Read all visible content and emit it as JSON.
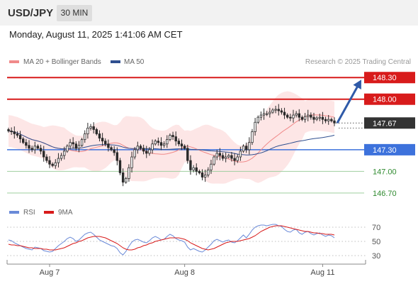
{
  "header": {
    "pair": "USD/JPY",
    "timeframe": "30 MIN",
    "datetime": "Monday, August 11, 2025 1:41:06 AM CET"
  },
  "legend": {
    "ma20": "MA 20 + Bollinger Bands",
    "ma50": "MA 50",
    "credit": "Research © 2025 Trading Central",
    "rsi": "RSI",
    "rsi_ma": "9MA"
  },
  "colors": {
    "resistance": "#d81b1b",
    "support": "#3d72dc",
    "target": "#9fcf9f",
    "target_text": "#2f8a2f",
    "bands": "#fde2e2",
    "ma20": "#f08a8a",
    "ma50": "#2f4f8f",
    "arrow": "#2f5aa8",
    "rsi": "#6a8ad8",
    "rsi_ma": "#d81b1b",
    "candle": "#2a2a2a",
    "last_bg": "#333333"
  },
  "chart_data": {
    "type": "candlestick",
    "instrument": "USD/JPY",
    "interval": "30 MIN",
    "ylim": [
      146.6,
      148.45
    ],
    "x_ticks": [
      "Aug 7",
      "Aug 8",
      "Aug 11"
    ],
    "levels": [
      {
        "value": 148.3,
        "label": "148.30",
        "kind": "resistance"
      },
      {
        "value": 148.0,
        "label": "148.00",
        "kind": "resistance"
      },
      {
        "value": 147.67,
        "label": "147.67",
        "kind": "last"
      },
      {
        "value": 147.3,
        "label": "147.30",
        "kind": "pivot"
      },
      {
        "value": 147.0,
        "label": "147.00",
        "kind": "target"
      },
      {
        "value": 146.7,
        "label": "146.70",
        "kind": "target"
      }
    ],
    "closes": [
      147.56,
      147.55,
      147.52,
      147.5,
      147.45,
      147.4,
      147.36,
      147.32,
      147.3,
      147.35,
      147.32,
      147.28,
      147.2,
      147.15,
      147.1,
      147.08,
      147.12,
      147.18,
      147.22,
      147.28,
      147.35,
      147.4,
      147.38,
      147.32,
      147.36,
      147.44,
      147.52,
      147.6,
      147.62,
      147.58,
      147.52,
      147.46,
      147.42,
      147.38,
      147.33,
      147.3,
      147.26,
      147.15,
      146.98,
      146.85,
      146.9,
      147.05,
      147.2,
      147.3,
      147.35,
      147.32,
      147.28,
      147.25,
      147.3,
      147.38,
      147.42,
      147.4,
      147.36,
      147.38,
      147.44,
      147.5,
      147.48,
      147.42,
      147.38,
      147.35,
      147.32,
      147.15,
      147.02,
      147.05,
      147.0,
      146.98,
      146.92,
      146.95,
      147.02,
      147.1,
      147.2,
      147.25,
      147.22,
      147.18,
      147.2,
      147.22,
      147.18,
      147.15,
      147.2,
      147.28,
      147.35,
      147.3,
      147.4,
      147.55,
      147.68,
      147.75,
      147.78,
      147.8,
      147.8,
      147.82,
      147.85,
      147.86,
      147.84,
      147.82,
      147.78,
      147.75,
      147.74,
      147.78,
      147.8,
      147.75,
      147.72,
      147.76,
      147.78,
      147.75,
      147.72,
      147.74,
      147.75,
      147.72,
      147.7,
      147.72,
      147.7,
      147.67
    ],
    "x_tick_index": [
      14,
      60,
      107
    ],
    "rsi": {
      "ylim": [
        20,
        80
      ],
      "ticks": [
        70,
        50,
        30
      ],
      "values": [
        52,
        51,
        48,
        46,
        44,
        42,
        40,
        39,
        38,
        42,
        41,
        40,
        37,
        36,
        35,
        36,
        40,
        44,
        47,
        50,
        54,
        56,
        54,
        50,
        52,
        56,
        60,
        62,
        63,
        60,
        56,
        52,
        50,
        48,
        46,
        44,
        43,
        40,
        34,
        31,
        36,
        43,
        49,
        52,
        53,
        51,
        49,
        48,
        51,
        55,
        57,
        55,
        52,
        53,
        57,
        60,
        58,
        54,
        52,
        51,
        49,
        42,
        38,
        40,
        38,
        36,
        35,
        38,
        42,
        46,
        51,
        53,
        51,
        49,
        51,
        52,
        49,
        48,
        51,
        55,
        59,
        55,
        60,
        66,
        70,
        72,
        73,
        73,
        72,
        73,
        74,
        74,
        72,
        71,
        67,
        64,
        63,
        66,
        67,
        62,
        60,
        63,
        64,
        61,
        59,
        61,
        62,
        59,
        57,
        59,
        58,
        55
      ],
      "ma9": [
        46,
        45,
        45,
        44,
        44,
        43,
        42,
        41,
        41,
        40,
        40,
        40,
        39,
        39,
        38,
        38,
        38,
        39,
        40,
        41,
        43,
        45,
        47,
        48,
        50,
        51,
        53,
        55,
        56,
        57,
        57,
        57,
        56,
        55,
        53,
        51,
        49,
        47,
        44,
        41,
        39,
        38,
        38,
        39,
        41,
        42,
        44,
        45,
        47,
        48,
        50,
        51,
        52,
        53,
        54,
        55,
        55,
        55,
        55,
        54,
        53,
        51,
        48,
        46,
        44,
        42,
        40,
        39,
        38,
        39,
        40,
        42,
        44,
        46,
        48,
        49,
        50,
        50,
        50,
        51,
        52,
        53,
        54,
        56,
        58,
        61,
        64,
        66,
        68,
        70,
        71,
        72,
        72,
        72,
        71,
        70,
        69,
        68,
        67,
        66,
        65,
        64,
        64,
        63,
        62,
        62,
        61,
        61,
        60,
        60,
        60,
        59
      ]
    }
  }
}
